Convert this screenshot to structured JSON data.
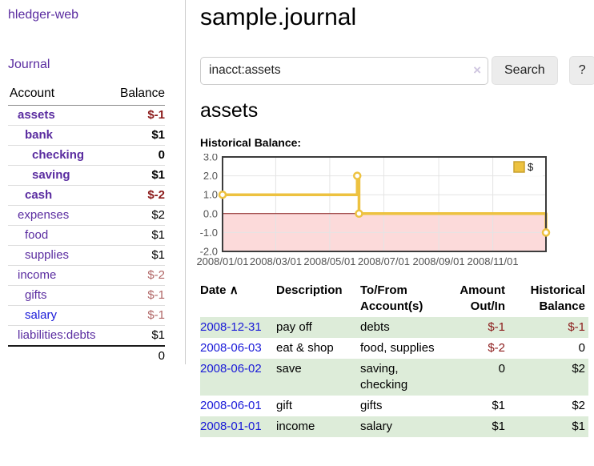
{
  "app": {
    "title": "hledger-web"
  },
  "colors": {
    "link_purple": "#5a2ca0",
    "link_blue": "#1919d8",
    "negative_strong": "#8b1a1a",
    "negative_soft": "#b06565",
    "stripe_green": "#ddecd9"
  },
  "sidebar": {
    "journal_link": "Journal",
    "accounts_table": {
      "headers": {
        "account": "Account",
        "balance": "Balance"
      },
      "rows": [
        {
          "label": "assets",
          "balance": "$-1",
          "depth": 1,
          "emph": true,
          "balance_style": "neg-strong",
          "link_style": "visited"
        },
        {
          "label": "bank",
          "balance": "$1",
          "depth": 2,
          "emph": true,
          "balance_style": "",
          "link_style": "visited"
        },
        {
          "label": "checking",
          "balance": "0",
          "depth": 3,
          "emph": true,
          "balance_style": "",
          "link_style": "visited"
        },
        {
          "label": "saving",
          "balance": "$1",
          "depth": 3,
          "emph": true,
          "balance_style": "",
          "link_style": "visited"
        },
        {
          "label": "cash",
          "balance": "$-2",
          "depth": 2,
          "emph": true,
          "balance_style": "neg-strong",
          "link_style": "visited"
        },
        {
          "label": "expenses",
          "balance": "$2",
          "depth": 1,
          "emph": false,
          "balance_style": "",
          "link_style": "visited"
        },
        {
          "label": "food",
          "balance": "$1",
          "depth": 2,
          "emph": false,
          "balance_style": "",
          "link_style": "visited"
        },
        {
          "label": "supplies",
          "balance": "$1",
          "depth": 2,
          "emph": false,
          "balance_style": "",
          "link_style": "visited"
        },
        {
          "label": "income",
          "balance": "$-2",
          "depth": 1,
          "emph": false,
          "balance_style": "neg-soft",
          "link_style": "visited"
        },
        {
          "label": "gifts",
          "balance": "$-1",
          "depth": 2,
          "emph": false,
          "balance_style": "neg-soft",
          "link_style": "visited"
        },
        {
          "label": "salary",
          "balance": "$-1",
          "depth": 2,
          "emph": false,
          "balance_style": "neg-soft",
          "link_style": "unvisited"
        },
        {
          "label": "liabilities:debts",
          "balance": "$1",
          "depth": 1,
          "emph": false,
          "balance_style": "",
          "link_style": "visited"
        }
      ],
      "total": "0"
    }
  },
  "main": {
    "title": "sample.journal",
    "search": {
      "value": "inacct:assets",
      "clear_icon": "×",
      "button_label": "Search",
      "help_label": "?"
    },
    "account_heading": "assets",
    "chart_label": "Historical Balance:"
  },
  "chart_data": {
    "type": "line",
    "step": true,
    "title": "Historical Balance of assets",
    "series": [
      {
        "name": "$",
        "color": "#edc240",
        "points": [
          [
            "2008-01-01",
            1
          ],
          [
            "2008-06-01",
            2
          ],
          [
            "2008-06-03",
            0
          ],
          [
            "2008-12-31",
            -1
          ]
        ]
      }
    ],
    "x_ticks": [
      "2008/01/01",
      "2008/03/01",
      "2008/05/01",
      "2008/07/01",
      "2008/09/01",
      "2008/11/01"
    ],
    "y_ticks": [
      "3.0",
      "2.0",
      "1.0",
      "0.0",
      "-1.0",
      "-2.0"
    ],
    "xlim": [
      "2008-01-01",
      "2008-12-31"
    ],
    "ylim": [
      -2,
      3
    ],
    "grid": true,
    "negative_region_color": "#fcdada",
    "zero_line_color": "#8b1a1a",
    "legend": {
      "label": "$",
      "position": "top-right"
    }
  },
  "register": {
    "headers": {
      "date": "Date",
      "sort_icon": "∧",
      "description": "Description",
      "accounts": "To/From Account(s)",
      "amount": "Amount Out/In",
      "balance": "Historical Balance"
    },
    "rows": [
      {
        "date": "2008-12-31",
        "description": "pay off",
        "accounts": "debts",
        "amount": "$-1",
        "balance": "$-1",
        "amount_negative": true,
        "balance_negative": true
      },
      {
        "date": "2008-06-03",
        "description": "eat & shop",
        "accounts": "food, supplies",
        "amount": "$-2",
        "balance": "0",
        "amount_negative": true,
        "balance_negative": false
      },
      {
        "date": "2008-06-02",
        "description": "save",
        "accounts": "saving, checking",
        "amount": "0",
        "balance": "$2",
        "amount_negative": false,
        "balance_negative": false
      },
      {
        "date": "2008-06-01",
        "description": "gift",
        "accounts": "gifts",
        "amount": "$1",
        "balance": "$2",
        "amount_negative": false,
        "balance_negative": false
      },
      {
        "date": "2008-01-01",
        "description": "income",
        "accounts": "salary",
        "amount": "$1",
        "balance": "$1",
        "amount_negative": false,
        "balance_negative": false
      }
    ]
  }
}
